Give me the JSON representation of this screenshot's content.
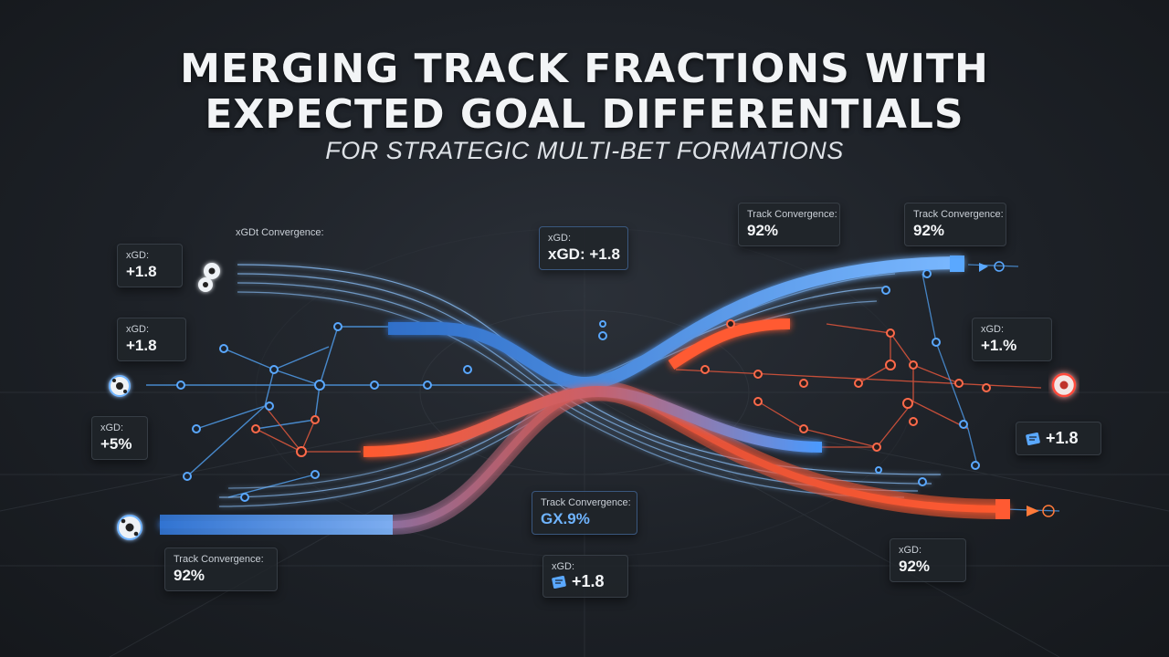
{
  "header": {
    "title_line1": "MERGING TRACK FRACTIONS WITH",
    "title_line2": "EXPECTED GOAL DIFFERENTIALS",
    "subtitle": "FOR STRATEGIC MULTI-BET FORMATIONS"
  },
  "labels": {
    "convergence_top_left": "xGDt Convergence:",
    "xgd_1": {
      "label": "xGD:",
      "value": "+1.8"
    },
    "xgd_2": {
      "label": "xGD:",
      "value": "+1.8"
    },
    "xgd_3": {
      "label": "xGD:",
      "value": "+5%"
    },
    "xgd_center_top": {
      "label": "xGD:",
      "value": "xGD: +1.8"
    },
    "track_top_right_1": {
      "label": "Track Convergence:",
      "value": "92%"
    },
    "track_top_right_2": {
      "label": "Track Convergence:",
      "value": "92%"
    },
    "xgd_right": {
      "label": "xGD:",
      "value": "+1.%"
    },
    "right_icon_value": "+1.8",
    "track_center_bottom": {
      "label": "Track Convergence:",
      "value": "GX.9%"
    },
    "track_bottom_left": {
      "label": "Track Convergence:",
      "value": "92%"
    },
    "xgd_bottom_center": {
      "label": "xGD:",
      "value": "+1.8"
    },
    "xgd_bottom_right": {
      "label": "xGD:",
      "value": "92%"
    }
  },
  "colors": {
    "blue_track": "#3d8cff",
    "red_track": "#ff4a2e",
    "node_blue": "#5aa8ff",
    "node_red": "#ff6a4a"
  },
  "icons": [
    "soccer-ball-icon",
    "ticket-icon",
    "target-arrow-icon"
  ]
}
